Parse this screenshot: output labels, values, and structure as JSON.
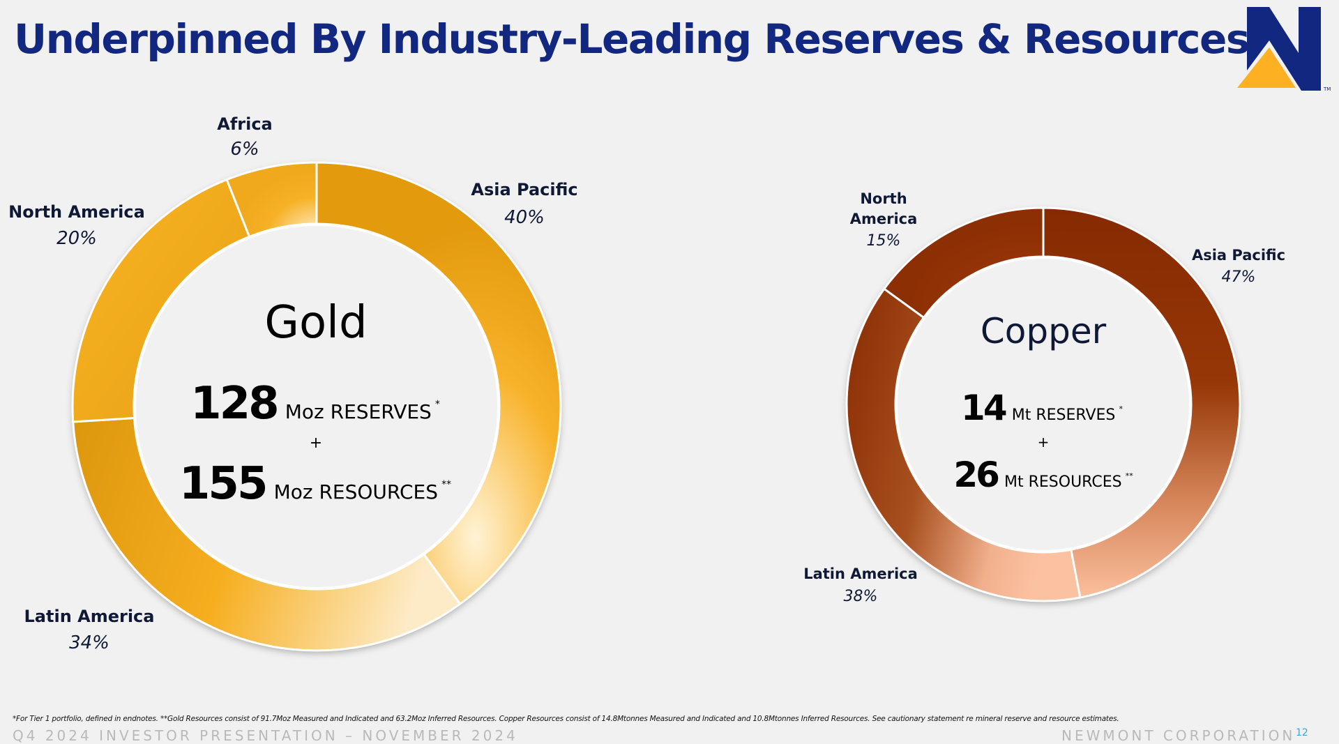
{
  "title": "Underpinned By Industry-Leading Reserves & Resources",
  "logo": {
    "name": "newmont-logo-icon",
    "trademark": "TM",
    "colors": {
      "navy": "#12277f",
      "gold": "#fdb022"
    }
  },
  "chart_data": [
    {
      "type": "pie",
      "variant": "donut",
      "title": "Gold",
      "start": "12 o'clock, clockwise",
      "categories": [
        "Asia Pacific",
        "Latin America",
        "North America",
        "Africa"
      ],
      "values": [
        40,
        34,
        20,
        6
      ],
      "labels": [
        "40%",
        "34%",
        "20%",
        "6%"
      ],
      "unit": "%",
      "colors": [
        "#e9a012",
        "#f4ab1c",
        "#f6ad1e",
        "#f8b42a"
      ],
      "highlight_color": "#fff3d6",
      "center": {
        "title": "Gold",
        "lines": [
          {
            "value": "128",
            "unit": "Moz RESERVES",
            "mark": "*"
          },
          {
            "value": "155",
            "unit": "Moz RESOURCES",
            "mark": "**"
          }
        ],
        "joiner": "+"
      },
      "legend": "labels-outside"
    },
    {
      "type": "pie",
      "variant": "donut",
      "title": "Copper",
      "start": "12 o'clock, clockwise",
      "categories": [
        "Asia Pacific",
        "Latin America",
        "North America"
      ],
      "values": [
        47,
        38,
        15
      ],
      "labels": [
        "47%",
        "38%",
        "15%"
      ],
      "unit": "%",
      "colors": [
        "#8a2c02",
        "#8e2f04",
        "#933406"
      ],
      "highlight_color": "#fbc0a0",
      "center": {
        "title": "Copper",
        "lines": [
          {
            "value": "14",
            "unit": "Mt RESERVES",
            "mark": "*"
          },
          {
            "value": "26",
            "unit": "Mt RESOURCES",
            "mark": "**"
          }
        ],
        "joiner": "+"
      },
      "legend": "labels-outside"
    }
  ],
  "footnote": "*For Tier 1 portfolio, defined in endnotes. **Gold Resources consist of 91.7Moz Measured and Indicated and 63.2Moz Inferred Resources. Copper Resources consist of 14.8Mtonnes Measured and Indicated and 10.8Mtonnes Inferred Resources. See cautionary statement re mineral reserve and resource estimates.",
  "footer": {
    "left": "Q4 2024 INVESTOR PRESENTATION – NOVEMBER 2024",
    "right": "NEWMONT CORPORATION",
    "page": "12"
  }
}
